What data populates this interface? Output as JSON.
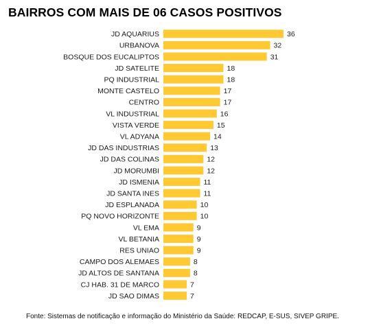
{
  "chart_data": {
    "type": "bar",
    "orientation": "horizontal",
    "title": "BAIRROS COM MAIS DE 06 CASOS POSITIVOS",
    "categories": [
      "JD AQUARIUS",
      "URBANOVA",
      "BOSQUE DOS EUCALIPTOS",
      "JD SATELITE",
      "PQ INDUSTRIAL",
      "MONTE CASTELO",
      "CENTRO",
      "VL INDUSTRIAL",
      "VISTA VERDE",
      "VL ADYANA",
      "JD DAS INDUSTRIAS",
      "JD DAS COLINAS",
      "JD MORUMBI",
      "JD ISMENIA",
      "JD SANTA INES",
      "JD ESPLANADA",
      "PQ NOVO HORIZONTE",
      "VL EMA",
      "VL BETANIA",
      "RES UNIAO",
      "CAMPO DOS ALEMAES",
      "JD ALTOS DE SANTANA",
      "CJ HAB. 31 DE MARCO",
      "JD SAO DIMAS"
    ],
    "values": [
      36,
      32,
      31,
      18,
      18,
      17,
      17,
      16,
      15,
      14,
      13,
      12,
      12,
      11,
      11,
      10,
      10,
      9,
      9,
      9,
      8,
      8,
      7,
      7
    ],
    "xlim": [
      0,
      36
    ],
    "grid": false,
    "legend": "none",
    "bar_color": "#FFC933"
  },
  "footer": {
    "source": "Fonte:  Sistemas de notificação e informação do Ministério da Saúde: REDCAP, E-SUS, SIVEP GRIPE."
  }
}
